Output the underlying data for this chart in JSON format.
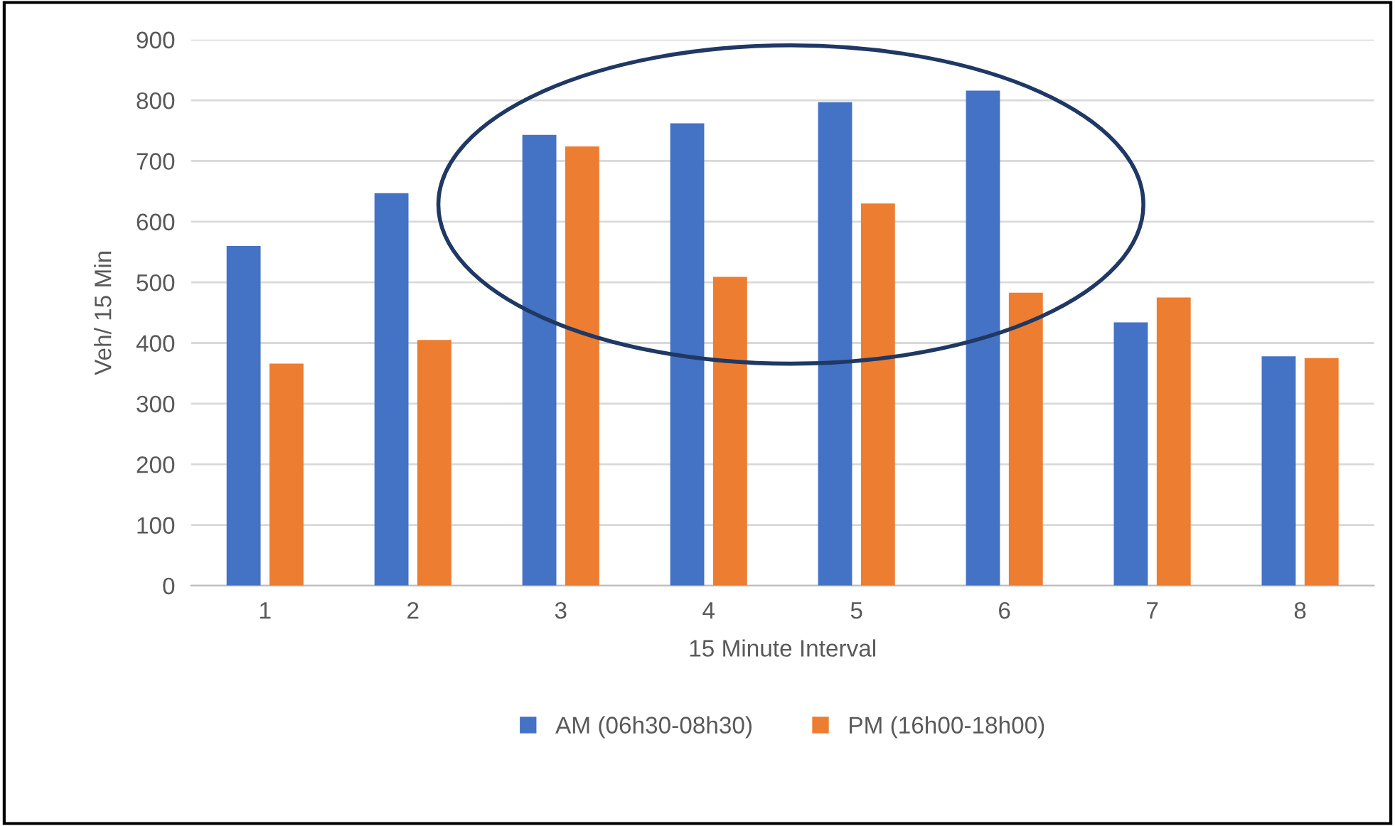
{
  "chart_data": {
    "type": "bar",
    "xlabel": "15 Minute Interval",
    "ylabel": "Veh/ 15 Min",
    "categories": [
      "1",
      "2",
      "3",
      "4",
      "5",
      "6",
      "7",
      "8"
    ],
    "series": [
      {
        "name": "AM (06h30-08h30)",
        "color": "#4472c4",
        "values": [
          560,
          647,
          743,
          762,
          797,
          816,
          434,
          378
        ]
      },
      {
        "name": "PM (16h00-18h00)",
        "color": "#ed7d31",
        "values": [
          366,
          405,
          724,
          509,
          630,
          483,
          475,
          375
        ]
      }
    ],
    "ylim": [
      0,
      900
    ],
    "yticks": [
      0,
      100,
      200,
      300,
      400,
      500,
      600,
      700,
      800,
      900
    ],
    "grid": "y",
    "legend": "bottom"
  }
}
